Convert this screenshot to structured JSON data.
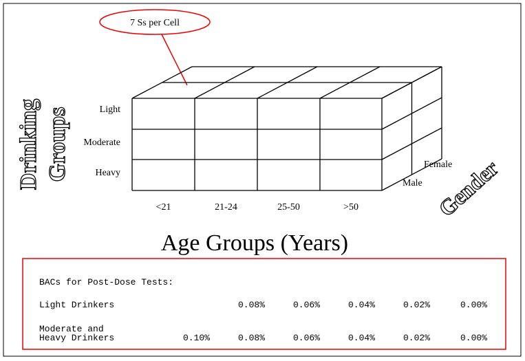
{
  "callout": "7 Ss per Cell",
  "rows_axis": {
    "title_lines": [
      "Drinking",
      "Groups"
    ],
    "labels": [
      "Light",
      "Moderate",
      "Heavy"
    ]
  },
  "columns_axis": {
    "title": "Age Groups (Years)",
    "labels": [
      "<21",
      "21-24",
      "25-50",
      ">50"
    ]
  },
  "depth_axis": {
    "title": "Gender",
    "labels": [
      "Female",
      "Male"
    ]
  },
  "table": {
    "heading": "BACs for Post-Dose Tests:",
    "rows": [
      {
        "label_lines": [
          "Light Drinkers"
        ],
        "values": [
          "0.08%",
          "0.06%",
          "0.04%",
          "0.02%",
          "0.00%"
        ]
      },
      {
        "label_lines": [
          "Moderate and",
          "Heavy Drinkers"
        ],
        "values": [
          "0.10%",
          "0.08%",
          "0.06%",
          "0.04%",
          "0.02%",
          "0.00%"
        ]
      }
    ]
  }
}
